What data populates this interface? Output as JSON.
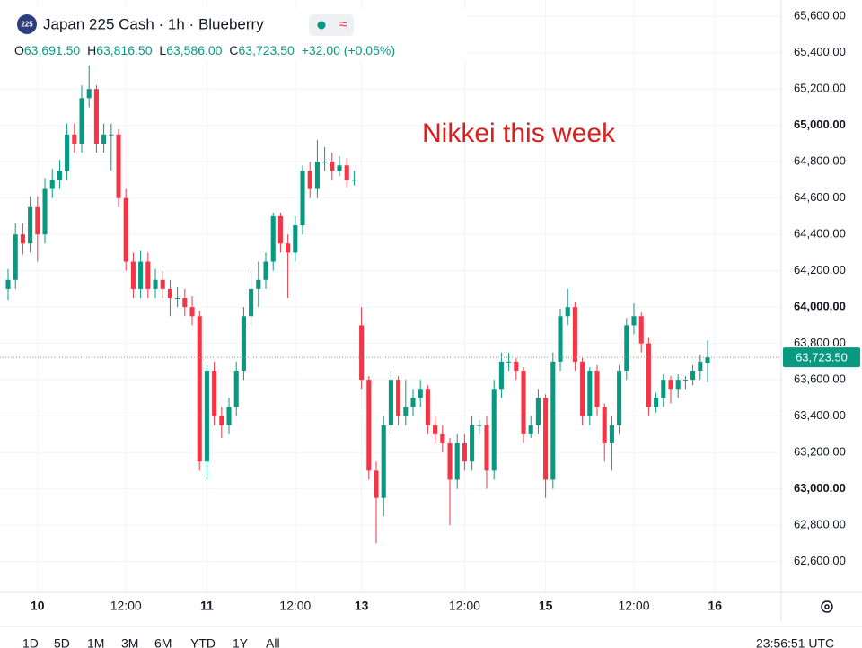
{
  "chart_data": {
    "type": "candlestick",
    "title": "Japan 225 Cash · 1h · Blueberry",
    "symbol_badge": "225",
    "ohlc_header": {
      "o_label": "O",
      "o": "63,691.50",
      "h_label": "H",
      "h": "63,816.50",
      "l_label": "L",
      "l": "63,586.00",
      "c_label": "C",
      "c": "63,723.50",
      "change": "+32.00 (+0.05%)"
    },
    "annotation": "Nikkei this week",
    "up_color": "#089981",
    "down_color": "#f23645",
    "annotation_color": "#d9201f",
    "open": [
      64100,
      64150,
      64400,
      64350,
      64550,
      64400,
      64650,
      64700,
      64750,
      64950,
      64900,
      65150,
      65200,
      64900,
      64950,
      64950,
      64600,
      64250,
      64100,
      64250,
      64100,
      64150,
      64100,
      64050,
      64050,
      64000,
      63950,
      63150,
      63650,
      63400,
      63350,
      63450,
      63650,
      63950,
      64100,
      64150,
      64250,
      64500,
      64350,
      64300,
      64450,
      64750,
      64650,
      64800,
      64800,
      64750,
      64780,
      64700,
      63900,
      63600,
      63100,
      62950,
      63350,
      63600,
      63400,
      63450,
      63500,
      63550,
      63350,
      63300,
      63250,
      63050,
      63250,
      63150,
      63350,
      63350,
      63100,
      63550,
      63700,
      63700,
      63650,
      63300,
      63350,
      63500,
      63050,
      63700,
      63950,
      64000,
      63700,
      63400,
      63650,
      63450,
      63250,
      63350,
      63650,
      63900,
      63950,
      63800,
      63450,
      63500,
      63600,
      63550,
      63600,
      63600,
      63650,
      63691.5
    ],
    "high": [
      64210,
      64460,
      64460,
      64610,
      64610,
      64710,
      64760,
      64810,
      65010,
      65010,
      65220,
      65330,
      65220,
      65010,
      65010,
      64980,
      64650,
      64300,
      64310,
      64300,
      64210,
      64200,
      64150,
      64110,
      64100,
      64060,
      63980,
      63680,
      63700,
      63450,
      63500,
      63700,
      64000,
      64200,
      64250,
      64300,
      64520,
      64520,
      64400,
      64500,
      64780,
      64800,
      64920,
      64880,
      64850,
      64830,
      64820,
      64750,
      64000,
      63620,
      63150,
      63400,
      63650,
      63620,
      63600,
      63550,
      63600,
      63570,
      63400,
      63350,
      63280,
      63300,
      63300,
      63400,
      63380,
      63400,
      63600,
      63750,
      63750,
      63720,
      63670,
      63400,
      63550,
      63520,
      63750,
      63990,
      64100,
      64030,
      63720,
      63670,
      63680,
      63470,
      63400,
      63680,
      63940,
      64020,
      63970,
      63830,
      63530,
      63630,
      63620,
      63630,
      63620,
      63680,
      63740,
      63816.5
    ],
    "low": [
      64040,
      64100,
      64290,
      64300,
      64250,
      64350,
      64600,
      64650,
      64700,
      64850,
      64850,
      65100,
      64850,
      64850,
      64750,
      64550,
      64200,
      64050,
      64050,
      64050,
      64050,
      64050,
      63950,
      64000,
      63950,
      63900,
      63100,
      63050,
      63350,
      63280,
      63300,
      63400,
      63600,
      63900,
      64000,
      64100,
      64200,
      64300,
      64050,
      64250,
      64400,
      64600,
      64600,
      64750,
      64700,
      64720,
      64660,
      64670,
      63550,
      63050,
      62700,
      62850,
      63300,
      63350,
      63350,
      63400,
      63450,
      63300,
      63250,
      63200,
      62800,
      63000,
      63100,
      63100,
      63300,
      63000,
      63050,
      63500,
      63650,
      63600,
      63250,
      63280,
      63300,
      62950,
      63000,
      63650,
      63900,
      63650,
      63350,
      63350,
      63400,
      63150,
      63100,
      63300,
      63600,
      63850,
      63750,
      63400,
      63420,
      63450,
      63470,
      63500,
      63550,
      63570,
      63600,
      63586
    ],
    "close": [
      64150,
      64400,
      64350,
      64550,
      64400,
      64650,
      64700,
      64750,
      64950,
      64900,
      65150,
      65200,
      64900,
      64950,
      64950,
      64600,
      64250,
      64100,
      64250,
      64100,
      64150,
      64100,
      64050,
      64050,
      64000,
      63950,
      63150,
      63650,
      63400,
      63350,
      63450,
      63650,
      63950,
      64100,
      64150,
      64250,
      64500,
      64350,
      64300,
      64450,
      64750,
      64650,
      64800,
      64800,
      64750,
      64780,
      64700,
      64700,
      63600,
      63100,
      62950,
      63350,
      63600,
      63400,
      63450,
      63500,
      63550,
      63350,
      63300,
      63250,
      63050,
      63250,
      63150,
      63350,
      63350,
      63100,
      63550,
      63700,
      63700,
      63650,
      63300,
      63350,
      63500,
      63050,
      63700,
      63950,
      64000,
      63700,
      63400,
      63650,
      63450,
      63250,
      63350,
      63650,
      63900,
      63950,
      63800,
      63450,
      63500,
      63600,
      63550,
      63600,
      63600,
      63650,
      63700,
      63723.5
    ],
    "last_price": {
      "value": 63723.5,
      "label": "63,723.50"
    },
    "xlim": [
      -1.1,
      105
    ],
    "xticks": [
      {
        "value": 4,
        "label": "10"
      },
      {
        "value": 16,
        "label": "12:00"
      },
      {
        "value": 27,
        "label": "11"
      },
      {
        "value": 39,
        "label": "12:00"
      },
      {
        "value": 48,
        "label": "13"
      },
      {
        "value": 62,
        "label": "12:00"
      },
      {
        "value": 73,
        "label": "15"
      },
      {
        "value": 85,
        "label": "12:00"
      },
      {
        "value": 96,
        "label": "16"
      }
    ],
    "ylim": [
      62430,
      65690
    ],
    "yticks": [
      {
        "value": 62600,
        "label": "62,600.00"
      },
      {
        "value": 62800,
        "label": "62,800.00"
      },
      {
        "value": 63000,
        "label": "63,000.00"
      },
      {
        "value": 63200,
        "label": "63,200.00"
      },
      {
        "value": 63400,
        "label": "63,400.00"
      },
      {
        "value": 63600,
        "label": "63,600.00"
      },
      {
        "value": 63800,
        "label": "63,800.00"
      },
      {
        "value": 64000,
        "label": "64,000.00"
      },
      {
        "value": 64200,
        "label": "64,200.00"
      },
      {
        "value": 64400,
        "label": "64,400.00"
      },
      {
        "value": 64600,
        "label": "64,600.00"
      },
      {
        "value": 64800,
        "label": "64,800.00"
      },
      {
        "value": 65000,
        "label": "65,000.00"
      },
      {
        "value": 65200,
        "label": "65,200.00"
      },
      {
        "value": 65400,
        "label": "65,400.00"
      },
      {
        "value": 65600,
        "label": "65,600.00"
      }
    ],
    "grid": true
  },
  "toolbar": {
    "ranges": [
      "1D",
      "5D",
      "1M",
      "3M",
      "6M",
      "YTD",
      "1Y",
      "All"
    ],
    "clock": "23:56:51 UTC"
  }
}
